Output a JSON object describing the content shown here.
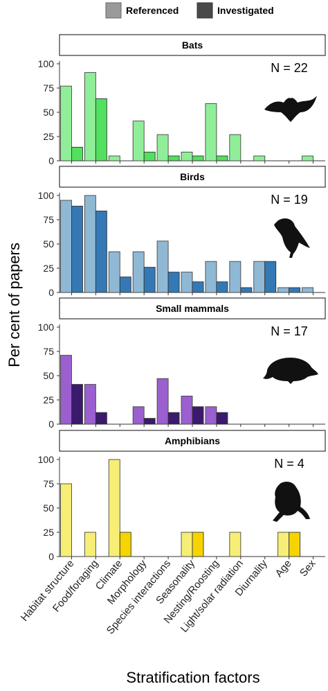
{
  "chart_data": {
    "type": "bar",
    "legend": {
      "position": "top",
      "entries": [
        {
          "label": "Referenced",
          "color": "#9a9a9a"
        },
        {
          "label": "Investigated",
          "color": "#4a4a4a"
        }
      ]
    },
    "categories": [
      "Habitat structure",
      "Food/foraging",
      "Climate",
      "Morphology",
      "Species interactions",
      "Seasonality",
      "Nesting/Roosting",
      "Light/solar radiation",
      "Diurnality",
      "Age",
      "Sex"
    ],
    "xlabel": "Stratification factors",
    "ylabel": "Per cent of papers",
    "ylim": [
      0,
      100
    ],
    "yticks": [
      0,
      25,
      50,
      75,
      100
    ],
    "panels": [
      {
        "title": "Bats",
        "n_label": "N = 22",
        "icon": "bat-icon",
        "colors": {
          "referenced": "#90ee99",
          "investigated": "#52e05f"
        },
        "series": [
          {
            "name": "Referenced",
            "values": [
              77,
              91,
              5,
              41,
              27,
              9,
              59,
              27,
              5,
              0,
              5
            ]
          },
          {
            "name": "Investigated",
            "values": [
              14,
              64,
              0,
              9,
              5,
              5,
              5,
              0,
              0,
              0,
              0
            ]
          }
        ]
      },
      {
        "title": "Birds",
        "n_label": "N = 19",
        "icon": "bird-icon",
        "colors": {
          "referenced": "#8fb8d4",
          "investigated": "#3479b5"
        },
        "series": [
          {
            "name": "Referenced",
            "values": [
              95,
              100,
              42,
              42,
              53,
              21,
              32,
              32,
              32,
              5,
              5
            ]
          },
          {
            "name": "Investigated",
            "values": [
              89,
              84,
              16,
              26,
              21,
              11,
              11,
              5,
              32,
              5,
              0
            ]
          }
        ]
      },
      {
        "title": "Small mammals",
        "n_label": "N = 17",
        "icon": "mammal-icon",
        "colors": {
          "referenced": "#9b5fcf",
          "investigated": "#3b1a6e"
        },
        "series": [
          {
            "name": "Referenced",
            "values": [
              71,
              41,
              0,
              18,
              47,
              29,
              18,
              0,
              0,
              0,
              0
            ]
          },
          {
            "name": "Investigated",
            "values": [
              41,
              12,
              0,
              6,
              12,
              18,
              12,
              0,
              0,
              0,
              0
            ]
          }
        ]
      },
      {
        "title": "Amphibians",
        "n_label": "N = 4",
        "icon": "frog-icon",
        "colors": {
          "referenced": "#f7ee75",
          "investigated": "#f5d400"
        },
        "series": [
          {
            "name": "Referenced",
            "values": [
              75,
              25,
              100,
              0,
              0,
              25,
              0,
              25,
              0,
              25,
              0
            ]
          },
          {
            "name": "Investigated",
            "values": [
              0,
              0,
              25,
              0,
              0,
              25,
              0,
              0,
              0,
              25,
              0
            ]
          }
        ]
      }
    ]
  }
}
